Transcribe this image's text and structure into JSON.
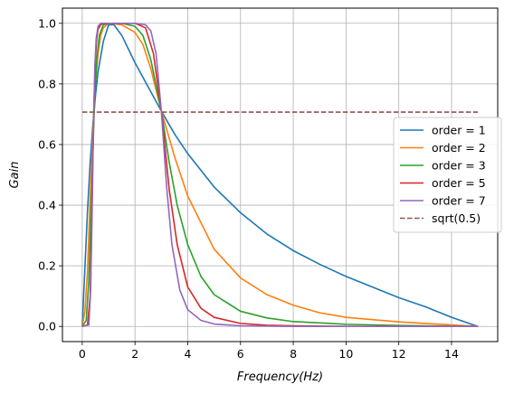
{
  "chart_data": {
    "type": "line",
    "title": "",
    "xlabel": "Frequency(Hz)",
    "ylabel": "Gain",
    "xlim": [
      -0.75,
      15.75
    ],
    "ylim": [
      -0.05,
      1.05
    ],
    "xticks": [
      0,
      2,
      4,
      6,
      8,
      10,
      12,
      14
    ],
    "yticks": [
      0.0,
      0.2,
      0.4,
      0.6,
      0.8,
      1.0
    ],
    "xtick_labels": [
      "0",
      "2",
      "4",
      "6",
      "8",
      "10",
      "12",
      "14"
    ],
    "ytick_labels": [
      "0.0",
      "0.2",
      "0.4",
      "0.6",
      "0.8",
      "1.0"
    ],
    "grid": true,
    "legend_position": "center-right",
    "series": [
      {
        "name": "order = 1",
        "color": "#1f77b4",
        "style": "solid",
        "x": [
          0,
          0.1,
          0.2,
          0.3,
          0.4,
          0.5,
          0.6,
          0.8,
          1.0,
          1.2,
          1.5,
          2.0,
          2.5,
          3.0,
          3.5,
          4.0,
          5.0,
          6.0,
          7.0,
          8.0,
          9.0,
          10.0,
          11.0,
          12.0,
          13.0,
          14.0,
          15.0
        ],
        "y": [
          0.0,
          0.19,
          0.38,
          0.54,
          0.66,
          0.76,
          0.84,
          0.94,
          0.995,
          0.995,
          0.96,
          0.87,
          0.79,
          0.71,
          0.635,
          0.57,
          0.46,
          0.375,
          0.305,
          0.25,
          0.205,
          0.165,
          0.13,
          0.095,
          0.065,
          0.03,
          0.0
        ]
      },
      {
        "name": "order = 2",
        "color": "#ff7f0e",
        "style": "solid",
        "x": [
          0,
          0.1,
          0.2,
          0.3,
          0.4,
          0.5,
          0.6,
          0.7,
          0.8,
          1.0,
          1.5,
          2.0,
          2.3,
          2.6,
          3.0,
          3.5,
          4.0,
          5.0,
          6.0,
          7.0,
          8.0,
          9.0,
          10.0,
          12.0,
          14.0,
          15.0
        ],
        "y": [
          0.0,
          0.05,
          0.18,
          0.42,
          0.63,
          0.8,
          0.9,
          0.96,
          0.985,
          1.0,
          0.995,
          0.97,
          0.93,
          0.85,
          0.71,
          0.56,
          0.43,
          0.255,
          0.16,
          0.105,
          0.07,
          0.045,
          0.03,
          0.015,
          0.005,
          0.0
        ]
      },
      {
        "name": "order = 3",
        "color": "#2ca02c",
        "style": "solid",
        "x": [
          0,
          0.15,
          0.25,
          0.35,
          0.45,
          0.55,
          0.65,
          0.8,
          1.0,
          1.5,
          2.0,
          2.3,
          2.6,
          3.0,
          3.3,
          3.6,
          4.0,
          4.5,
          5.0,
          6.0,
          7.0,
          8.0,
          10.0,
          12.0,
          15.0
        ],
        "y": [
          0.0,
          0.02,
          0.15,
          0.42,
          0.7,
          0.88,
          0.96,
          0.995,
          1.0,
          1.0,
          0.99,
          0.96,
          0.88,
          0.71,
          0.54,
          0.4,
          0.27,
          0.165,
          0.105,
          0.05,
          0.028,
          0.016,
          0.007,
          0.003,
          0.0
        ]
      },
      {
        "name": "order = 5",
        "color": "#d62728",
        "style": "solid",
        "x": [
          0,
          0.2,
          0.3,
          0.35,
          0.4,
          0.45,
          0.5,
          0.55,
          0.6,
          0.7,
          0.8,
          1.0,
          2.0,
          2.4,
          2.7,
          3.0,
          3.3,
          3.6,
          4.0,
          4.5,
          5.0,
          6.0,
          7.0,
          8.0,
          10.0,
          15.0
        ],
        "y": [
          0.0,
          0.005,
          0.1,
          0.3,
          0.55,
          0.75,
          0.88,
          0.95,
          0.98,
          0.995,
          1.0,
          1.0,
          1.0,
          0.985,
          0.9,
          0.71,
          0.45,
          0.27,
          0.13,
          0.06,
          0.03,
          0.01,
          0.004,
          0.002,
          0.0,
          0.0
        ]
      },
      {
        "name": "order = 7",
        "color": "#9467bd",
        "style": "solid",
        "x": [
          0,
          0.25,
          0.32,
          0.38,
          0.43,
          0.48,
          0.53,
          0.6,
          0.7,
          1.0,
          2.0,
          2.4,
          2.6,
          2.8,
          3.0,
          3.2,
          3.4,
          3.7,
          4.0,
          4.5,
          5.0,
          6.0,
          8.0,
          15.0
        ],
        "y": [
          0.0,
          0.005,
          0.12,
          0.4,
          0.68,
          0.86,
          0.95,
          0.99,
          1.0,
          1.0,
          1.0,
          0.995,
          0.975,
          0.9,
          0.71,
          0.46,
          0.27,
          0.12,
          0.055,
          0.02,
          0.008,
          0.002,
          0.0,
          0.0
        ]
      },
      {
        "name": "sqrt(0.5)",
        "color": "#8c564b",
        "style": "dashed",
        "x": [
          0,
          15
        ],
        "y": [
          0.7071,
          0.7071
        ]
      }
    ]
  }
}
